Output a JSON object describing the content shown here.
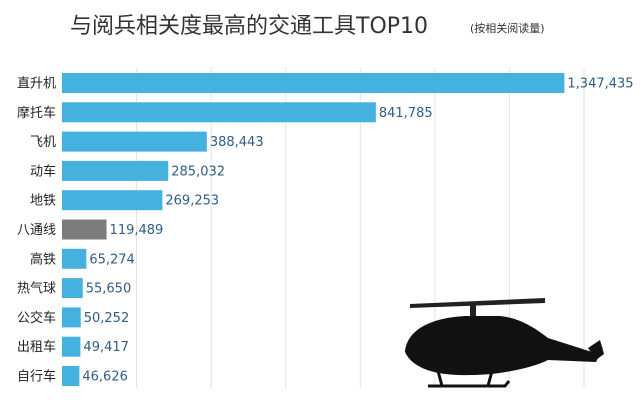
{
  "title": "与阅兵相关度最高的交通工具TOP10",
  "subtitle": "(按相关阅读量)",
  "chart_data": {
    "type": "bar",
    "orientation": "horizontal",
    "title": "与阅兵相关度最高的交通工具TOP10",
    "subtitle": "(按相关阅读量)",
    "categories": [
      "直升机",
      "摩托车",
      "飞机",
      "动车",
      "地铁",
      "八通线",
      "高铁",
      "热气球",
      "公交车",
      "出租车",
      "自行车"
    ],
    "values": [
      1347435,
      841785,
      388443,
      285032,
      269253,
      119489,
      65274,
      55650,
      50252,
      49417,
      46626
    ],
    "value_labels": [
      "1,347,435",
      "841,785",
      "388,443",
      "285,032",
      "269,253",
      "119,489",
      "65,274",
      "55,650",
      "50,252",
      "49,417",
      "46,626"
    ],
    "xlim": [
      0,
      1400000
    ],
    "grid": true,
    "colors": {
      "bar": "#45b1df",
      "highlight": "#7c7c7c",
      "value_text": "#2f5d8a",
      "grid": "#e3e3e3"
    },
    "highlight_category": "八通线",
    "decoration": "helicopter-silhouette"
  }
}
